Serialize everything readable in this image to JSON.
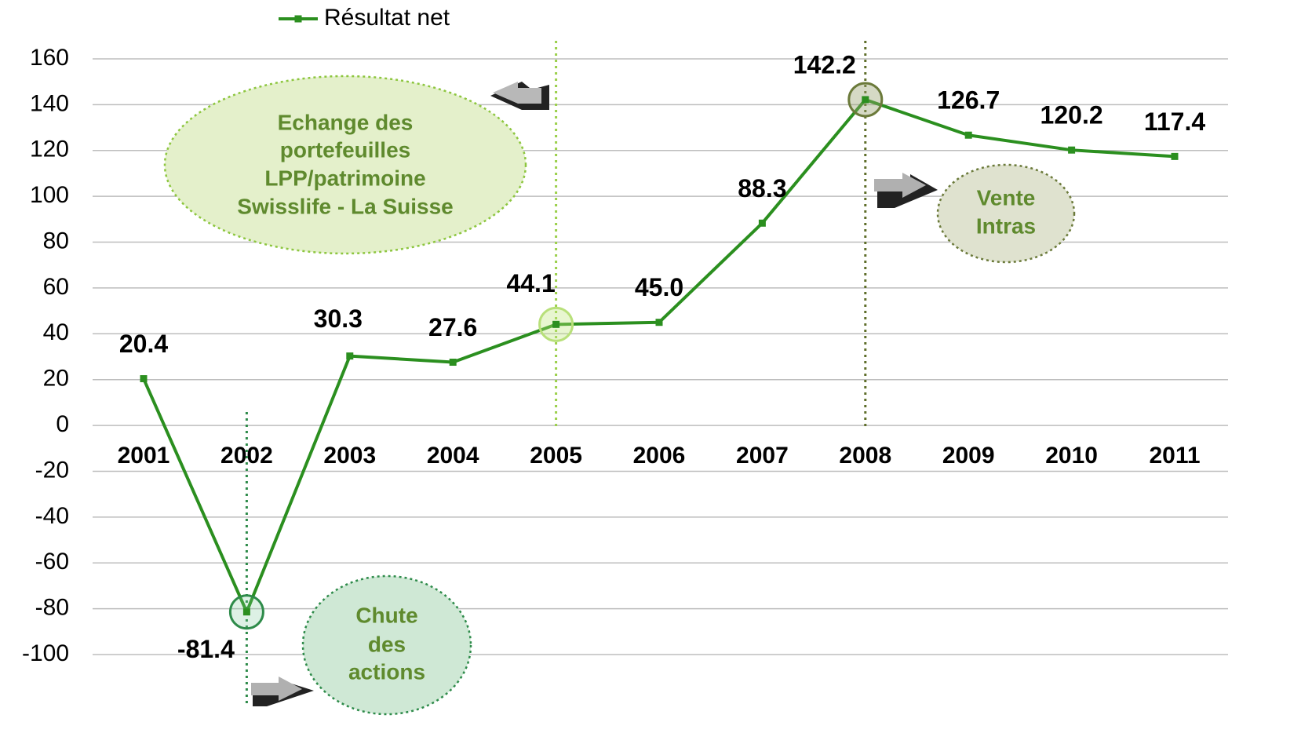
{
  "chart_data": {
    "type": "line",
    "categories": [
      "2001",
      "2002",
      "2003",
      "2004",
      "2005",
      "2006",
      "2007",
      "2008",
      "2009",
      "2010",
      "2011"
    ],
    "series": [
      {
        "name": "Résultat net",
        "color": "#2b8f1f",
        "values": [
          20.4,
          -81.4,
          30.3,
          27.6,
          44.1,
          45.0,
          88.3,
          142.2,
          126.7,
          120.2,
          117.4
        ],
        "value_labels": [
          "20.4",
          "-81.4",
          "30.3",
          "27.6",
          "44.1",
          "45.0",
          "88.3",
          "142.2",
          "126.7",
          "120.2",
          "117.4"
        ]
      }
    ],
    "ylim": [
      -100,
      160
    ],
    "yticks": [
      -100,
      -80,
      -60,
      -40,
      -20,
      0,
      20,
      40,
      60,
      80,
      100,
      120,
      140,
      160
    ],
    "grid": true,
    "legend": "top",
    "annotations": [
      {
        "category": "2005",
        "lines": [
          "Echange des",
          "portefeuilles",
          "LPP/patrimoine",
          "Swisslife - La Suisse"
        ]
      },
      {
        "category": "2002",
        "lines": [
          "Chute",
          "des",
          "actions"
        ]
      },
      {
        "category": "2008",
        "lines": [
          "Vente",
          "Intras"
        ]
      }
    ]
  }
}
